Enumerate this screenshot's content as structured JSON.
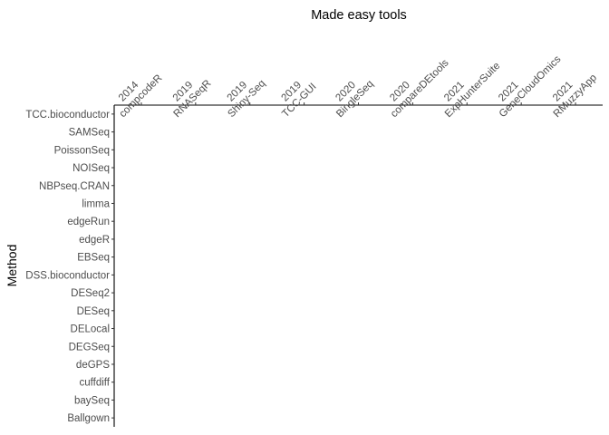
{
  "chart_data": {
    "type": "tile",
    "title": "Made easy tools",
    "y_label": "Method",
    "x_categories": [
      "2014\ncompcodeR",
      "2019\nRNASeqR",
      "2019\nShiny-Seq",
      "2019\nTCC-GUI",
      "2020\nBingleSeq",
      "2020\ncompareDEtools",
      "2021\nExpHunterSuite",
      "2021\nGeneCloudOmics",
      "2021\nRMuzzyApp"
    ],
    "y_categories": [
      "TCC.bioconductor",
      "SAMSeq",
      "PoissonSeq",
      "NOISeq",
      "NBPseq.CRAN",
      "limma",
      "edgeRun",
      "edgeR",
      "EBSeq",
      "DSS.bioconductor",
      "DESeq2",
      "DESeq",
      "DELocal",
      "DEGSeq",
      "deGPS",
      "cuffdiff",
      "baySeq",
      "Ballgown"
    ],
    "grid": false
  }
}
